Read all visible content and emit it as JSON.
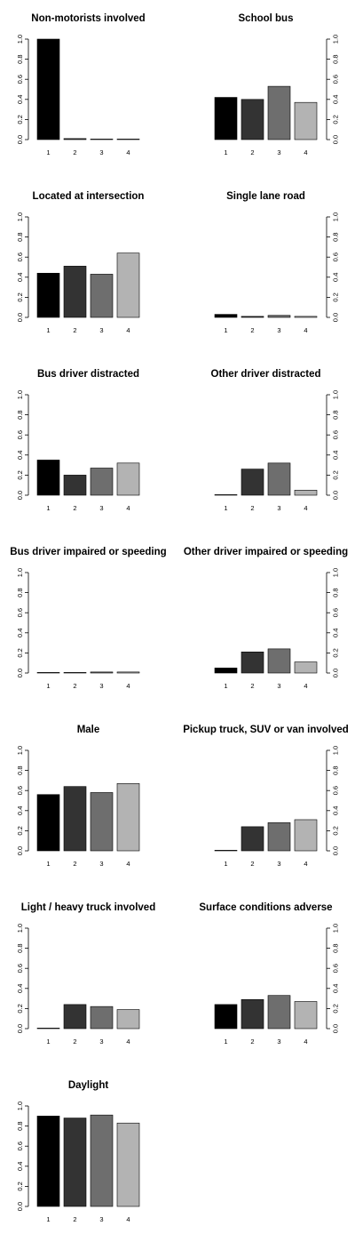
{
  "chart_data": [
    {
      "type": "bar",
      "title": "Non-motorists involved",
      "categories": [
        "1",
        "2",
        "3",
        "4"
      ],
      "values": [
        1.0,
        0.01,
        0.005,
        0.005
      ],
      "ylim": [
        0,
        1
      ],
      "yticks": [
        "0.0",
        "0.2",
        "0.4",
        "0.6",
        "0.8",
        "1.0"
      ],
      "axis_side": "left"
    },
    {
      "type": "bar",
      "title": "School bus",
      "categories": [
        "1",
        "2",
        "3",
        "4"
      ],
      "values": [
        0.42,
        0.4,
        0.53,
        0.37
      ],
      "ylim": [
        0,
        1
      ],
      "yticks": [
        "0.0",
        "0.2",
        "0.4",
        "0.6",
        "0.8",
        "1.0"
      ],
      "axis_side": "right"
    },
    {
      "type": "bar",
      "title": "Located at intersection",
      "categories": [
        "1",
        "2",
        "3",
        "4"
      ],
      "values": [
        0.44,
        0.51,
        0.43,
        0.64
      ],
      "ylim": [
        0,
        1
      ],
      "yticks": [
        "0.0",
        "0.2",
        "0.4",
        "0.6",
        "0.8",
        "1.0"
      ],
      "axis_side": "left"
    },
    {
      "type": "bar",
      "title": "Single lane road",
      "categories": [
        "1",
        "2",
        "3",
        "4"
      ],
      "values": [
        0.03,
        0.01,
        0.02,
        0.01
      ],
      "ylim": [
        0,
        1
      ],
      "yticks": [
        "0.0",
        "0.2",
        "0.4",
        "0.6",
        "0.8",
        "1.0"
      ],
      "axis_side": "right"
    },
    {
      "type": "bar",
      "title": "Bus driver distracted",
      "categories": [
        "1",
        "2",
        "3",
        "4"
      ],
      "values": [
        0.35,
        0.2,
        0.27,
        0.32
      ],
      "ylim": [
        0,
        1
      ],
      "yticks": [
        "0.0",
        "0.2",
        "0.4",
        "0.6",
        "0.8",
        "1.0"
      ],
      "axis_side": "left"
    },
    {
      "type": "bar",
      "title": "Other driver distracted",
      "categories": [
        "1",
        "2",
        "3",
        "4"
      ],
      "values": [
        0.005,
        0.26,
        0.32,
        0.05
      ],
      "ylim": [
        0,
        1
      ],
      "yticks": [
        "0.0",
        "0.2",
        "0.4",
        "0.6",
        "0.8",
        "1.0"
      ],
      "axis_side": "right"
    },
    {
      "type": "bar",
      "title": "Bus driver impaired or speeding",
      "categories": [
        "1",
        "2",
        "3",
        "4"
      ],
      "values": [
        0.005,
        0.005,
        0.01,
        0.01
      ],
      "ylim": [
        0,
        1
      ],
      "yticks": [
        "0.0",
        "0.2",
        "0.4",
        "0.6",
        "0.8",
        "1.0"
      ],
      "axis_side": "left"
    },
    {
      "type": "bar",
      "title": "Other driver impaired or speeding",
      "categories": [
        "1",
        "2",
        "3",
        "4"
      ],
      "values": [
        0.05,
        0.21,
        0.24,
        0.11
      ],
      "ylim": [
        0,
        1
      ],
      "yticks": [
        "0.0",
        "0.2",
        "0.4",
        "0.6",
        "0.8",
        "1.0"
      ],
      "axis_side": "right"
    },
    {
      "type": "bar",
      "title": "Male",
      "categories": [
        "1",
        "2",
        "3",
        "4"
      ],
      "values": [
        0.56,
        0.64,
        0.58,
        0.67
      ],
      "ylim": [
        0,
        1
      ],
      "yticks": [
        "0.0",
        "0.2",
        "0.4",
        "0.6",
        "0.8",
        "1.0"
      ],
      "axis_side": "left"
    },
    {
      "type": "bar",
      "title": "Pickup truck, SUV or van involved",
      "categories": [
        "1",
        "2",
        "3",
        "4"
      ],
      "values": [
        0.005,
        0.24,
        0.28,
        0.31
      ],
      "ylim": [
        0,
        1
      ],
      "yticks": [
        "0.0",
        "0.2",
        "0.4",
        "0.6",
        "0.8",
        "1.0"
      ],
      "axis_side": "right"
    },
    {
      "type": "bar",
      "title": "Light / heavy truck involved",
      "categories": [
        "1",
        "2",
        "3",
        "4"
      ],
      "values": [
        0.005,
        0.24,
        0.22,
        0.19
      ],
      "ylim": [
        0,
        1
      ],
      "yticks": [
        "0.0",
        "0.2",
        "0.4",
        "0.6",
        "0.8",
        "1.0"
      ],
      "axis_side": "left"
    },
    {
      "type": "bar",
      "title": "Surface conditions adverse",
      "categories": [
        "1",
        "2",
        "3",
        "4"
      ],
      "values": [
        0.24,
        0.29,
        0.33,
        0.27
      ],
      "ylim": [
        0,
        1
      ],
      "yticks": [
        "0.0",
        "0.2",
        "0.4",
        "0.6",
        "0.8",
        "1.0"
      ],
      "axis_side": "right"
    },
    {
      "type": "bar",
      "title": "Daylight",
      "categories": [
        "1",
        "2",
        "3",
        "4"
      ],
      "values": [
        0.9,
        0.88,
        0.91,
        0.83
      ],
      "ylim": [
        0,
        1
      ],
      "yticks": [
        "0.0",
        "0.2",
        "0.4",
        "0.6",
        "0.8",
        "1.0"
      ],
      "axis_side": "left"
    }
  ],
  "bar_colors": [
    "#000000",
    "#333333",
    "#6e6e6e",
    "#b3b3b3"
  ]
}
